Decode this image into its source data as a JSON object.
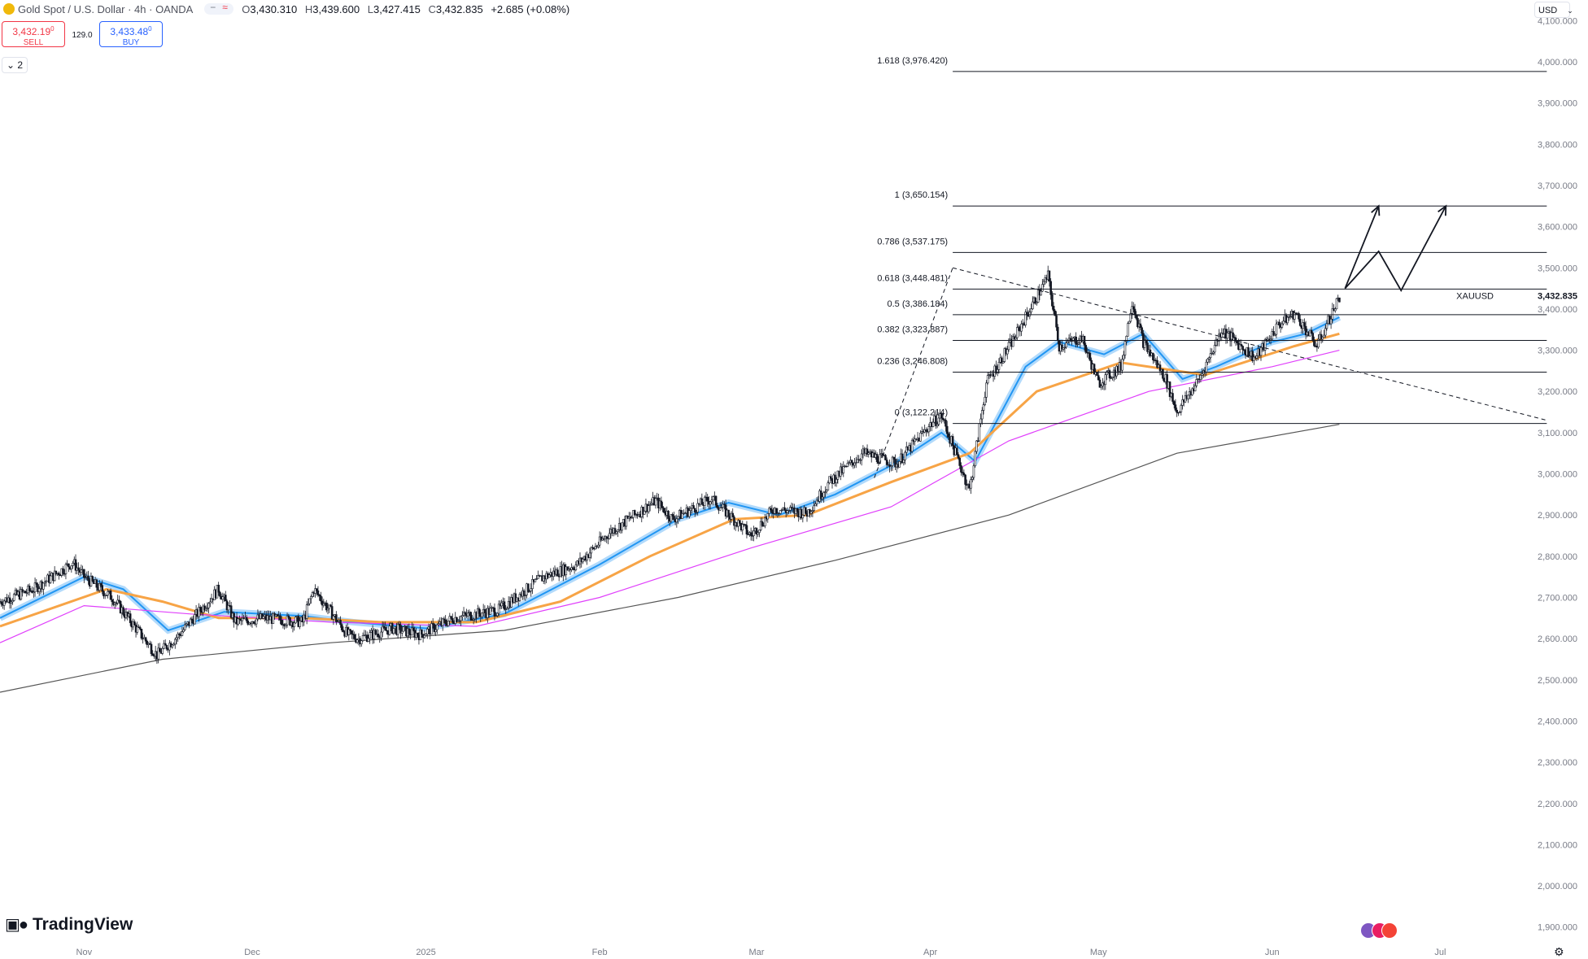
{
  "header": {
    "symbol_title": "Gold Spot / U.S. Dollar · 4h · OANDA",
    "ohlc": {
      "o_label": "O",
      "o": "3,430.310",
      "h_label": "H",
      "h": "3,439.600",
      "l_label": "L",
      "l": "3,427.415",
      "c_label": "C",
      "c": "3,432.835",
      "change": "+2.685 (+0.08%)"
    }
  },
  "trade": {
    "sell_price": "3,432.19",
    "sell_sup": "0",
    "sell_label": "SELL",
    "spread": "129.0",
    "buy_price": "3,433.48",
    "buy_sup": "0",
    "buy_label": "BUY"
  },
  "indicators_toggle": "2",
  "currency_unit": "USD",
  "brand": "TradingView",
  "colors": {
    "ema_fast": "#2196f3",
    "ema_mid": "#f7a446",
    "ema_slow": "#e040fb",
    "ema_long": "#555555",
    "candle": "#131722",
    "fib": "#131722",
    "axis_text": "#787b86"
  },
  "chart_data": {
    "type": "candlestick",
    "symbol": "XAUUSD",
    "timeframe": "4h",
    "ylim": [
      1860,
      4150
    ],
    "y_ticks": [
      1900,
      2000,
      2100,
      2200,
      2300,
      2400,
      2500,
      2600,
      2700,
      2800,
      2900,
      3000,
      3100,
      3200,
      3300,
      3400,
      3500,
      3600,
      3700,
      3800,
      3900,
      4000,
      4100
    ],
    "y_tick_labels": [
      "1,900.000",
      "2,000.000",
      "2,100.000",
      "2,200.000",
      "2,300.000",
      "2,400.000",
      "2,500.000",
      "2,600.000",
      "2,700.000",
      "2,800.000",
      "2,900.000",
      "3,000.000",
      "3,100.000",
      "3,200.000",
      "3,300.000",
      "3,400.000",
      "3,500.000",
      "3,600.000",
      "3,700.000",
      "3,800.000",
      "3,900.000",
      "4,000.000",
      "4,100.000"
    ],
    "x_range": [
      "2024-10-17",
      "2025-07-14"
    ],
    "x_ticks": [
      {
        "label": "Nov",
        "date": "2024-11-01"
      },
      {
        "label": "Dec",
        "date": "2024-12-01"
      },
      {
        "label": "2025",
        "date": "2025-01-01"
      },
      {
        "label": "Feb",
        "date": "2025-02-01"
      },
      {
        "label": "Mar",
        "date": "2025-03-01"
      },
      {
        "label": "Apr",
        "date": "2025-04-01"
      },
      {
        "label": "May",
        "date": "2025-05-01"
      },
      {
        "label": "Jun",
        "date": "2025-06-01"
      },
      {
        "label": "Jul",
        "date": "2025-07-01"
      }
    ],
    "last_price": {
      "label": "XAUUSD",
      "value": 3432.835,
      "value_label": "3,432.835"
    },
    "price_path": [
      [
        "2024-10-17",
        2690
      ],
      [
        "2024-10-23",
        2720
      ],
      [
        "2024-10-30",
        2785
      ],
      [
        "2024-11-01",
        2750
      ],
      [
        "2024-11-06",
        2700
      ],
      [
        "2024-11-14",
        2560
      ],
      [
        "2024-11-18",
        2610
      ],
      [
        "2024-11-25",
        2720
      ],
      [
        "2024-11-28",
        2640
      ],
      [
        "2024-12-03",
        2650
      ],
      [
        "2024-12-10",
        2640
      ],
      [
        "2024-12-12",
        2720
      ],
      [
        "2024-12-18",
        2610
      ],
      [
        "2024-12-20",
        2600
      ],
      [
        "2024-12-26",
        2625
      ],
      [
        "2024-12-31",
        2610
      ],
      [
        "2025-01-06",
        2650
      ],
      [
        "2025-01-14",
        2670
      ],
      [
        "2025-01-22",
        2750
      ],
      [
        "2025-01-28",
        2780
      ],
      [
        "2025-02-03",
        2860
      ],
      [
        "2025-02-11",
        2935
      ],
      [
        "2025-02-14",
        2890
      ],
      [
        "2025-02-21",
        2940
      ],
      [
        "2025-02-28",
        2850
      ],
      [
        "2025-03-04",
        2915
      ],
      [
        "2025-03-10",
        2905
      ],
      [
        "2025-03-14",
        2980
      ],
      [
        "2025-03-20",
        3050
      ],
      [
        "2025-03-26",
        3025
      ],
      [
        "2025-04-01",
        3120
      ],
      [
        "2025-04-03",
        3140
      ],
      [
        "2025-04-08",
        2960
      ],
      [
        "2025-04-11",
        3220
      ],
      [
        "2025-04-16",
        3330
      ],
      [
        "2025-04-22",
        3480
      ],
      [
        "2025-04-24",
        3310
      ],
      [
        "2025-04-28",
        3330
      ],
      [
        "2025-05-01",
        3220
      ],
      [
        "2025-05-05",
        3260
      ],
      [
        "2025-05-07",
        3420
      ],
      [
        "2025-05-09",
        3320
      ],
      [
        "2025-05-13",
        3230
      ],
      [
        "2025-05-15",
        3150
      ],
      [
        "2025-05-19",
        3230
      ],
      [
        "2025-05-23",
        3350
      ],
      [
        "2025-05-29",
        3280
      ],
      [
        "2025-06-02",
        3360
      ],
      [
        "2025-06-05",
        3390
      ],
      [
        "2025-06-09",
        3310
      ],
      [
        "2025-06-13",
        3430
      ]
    ],
    "moving_averages": [
      {
        "color": "#2196f3",
        "path": [
          [
            "2024-10-17",
            2650
          ],
          [
            "2024-11-01",
            2750
          ],
          [
            "2024-11-08",
            2720
          ],
          [
            "2024-11-16",
            2620
          ],
          [
            "2024-11-26",
            2665
          ],
          [
            "2024-12-10",
            2655
          ],
          [
            "2024-12-19",
            2640
          ],
          [
            "2025-01-01",
            2625
          ],
          [
            "2025-01-15",
            2660
          ],
          [
            "2025-02-01",
            2780
          ],
          [
            "2025-02-15",
            2890
          ],
          [
            "2025-02-24",
            2930
          ],
          [
            "2025-03-05",
            2900
          ],
          [
            "2025-03-15",
            2950
          ],
          [
            "2025-03-25",
            3020
          ],
          [
            "2025-04-03",
            3100
          ],
          [
            "2025-04-09",
            3030
          ],
          [
            "2025-04-18",
            3260
          ],
          [
            "2025-04-24",
            3320
          ],
          [
            "2025-05-02",
            3290
          ],
          [
            "2025-05-09",
            3340
          ],
          [
            "2025-05-16",
            3230
          ],
          [
            "2025-05-22",
            3260
          ],
          [
            "2025-06-01",
            3320
          ],
          [
            "2025-06-07",
            3340
          ],
          [
            "2025-06-13",
            3380
          ]
        ]
      },
      {
        "color": "#f7a446",
        "path": [
          [
            "2024-10-17",
            2630
          ],
          [
            "2024-11-05",
            2720
          ],
          [
            "2024-11-15",
            2690
          ],
          [
            "2024-11-25",
            2650
          ],
          [
            "2024-12-10",
            2650
          ],
          [
            "2024-12-24",
            2640
          ],
          [
            "2025-01-10",
            2640
          ],
          [
            "2025-01-25",
            2690
          ],
          [
            "2025-02-10",
            2800
          ],
          [
            "2025-02-25",
            2890
          ],
          [
            "2025-03-10",
            2900
          ],
          [
            "2025-03-25",
            2980
          ],
          [
            "2025-04-08",
            3050
          ],
          [
            "2025-04-20",
            3200
          ],
          [
            "2025-05-05",
            3270
          ],
          [
            "2025-05-20",
            3240
          ],
          [
            "2025-06-05",
            3310
          ],
          [
            "2025-06-13",
            3340
          ]
        ]
      },
      {
        "color": "#e040fb",
        "path": [
          [
            "2024-10-17",
            2590
          ],
          [
            "2024-11-01",
            2680
          ],
          [
            "2024-11-20",
            2660
          ],
          [
            "2024-12-15",
            2640
          ],
          [
            "2025-01-10",
            2630
          ],
          [
            "2025-02-01",
            2700
          ],
          [
            "2025-02-28",
            2820
          ],
          [
            "2025-03-25",
            2920
          ],
          [
            "2025-04-15",
            3080
          ],
          [
            "2025-05-10",
            3200
          ],
          [
            "2025-06-01",
            3260
          ],
          [
            "2025-06-13",
            3300
          ]
        ]
      },
      {
        "color": "#555555",
        "path": [
          [
            "2024-10-17",
            2470
          ],
          [
            "2024-11-15",
            2550
          ],
          [
            "2024-12-15",
            2590
          ],
          [
            "2025-01-15",
            2620
          ],
          [
            "2025-02-15",
            2700
          ],
          [
            "2025-03-15",
            2790
          ],
          [
            "2025-04-15",
            2900
          ],
          [
            "2025-05-15",
            3050
          ],
          [
            "2025-06-13",
            3120
          ]
        ]
      }
    ],
    "fibonacci": {
      "x_start": "2025-04-05",
      "x_end": "2025-07-20",
      "levels": [
        {
          "label": "0 (3,122.214)",
          "ratio": 0,
          "value": 3122.214
        },
        {
          "label": "0.236 (3,246.808)",
          "ratio": 0.236,
          "value": 3246.808
        },
        {
          "label": "0.382 (3,323.887)",
          "ratio": 0.382,
          "value": 3323.887
        },
        {
          "label": "0.5 (3,386.184)",
          "ratio": 0.5,
          "value": 3386.184
        },
        {
          "label": "0.618 (3,448.481)",
          "ratio": 0.618,
          "value": 3448.481
        },
        {
          "label": "0.786 (3,537.175)",
          "ratio": 0.786,
          "value": 3537.175
        },
        {
          "label": "1 (3,650.154)",
          "ratio": 1,
          "value": 3650.154
        },
        {
          "label": "1.618 (3,976.420)",
          "ratio": 1.618,
          "value": 3976.42
        }
      ]
    },
    "trendlines": [
      {
        "style": "dashed",
        "from": [
          "2025-03-22",
          2990
        ],
        "to": [
          "2025-04-05",
          3500
        ]
      },
      {
        "style": "dashed",
        "from": [
          "2025-04-05",
          3500
        ],
        "to": [
          "2025-07-20",
          3130
        ]
      }
    ],
    "projection_arrows": [
      {
        "path": [
          [
            "2025-06-14",
            3450
          ],
          [
            "2025-06-20",
            3650
          ]
        ]
      },
      {
        "path": [
          [
            "2025-06-14",
            3450
          ],
          [
            "2025-06-20",
            3540
          ],
          [
            "2025-06-24",
            3445
          ],
          [
            "2025-07-02",
            3650
          ]
        ]
      }
    ]
  }
}
